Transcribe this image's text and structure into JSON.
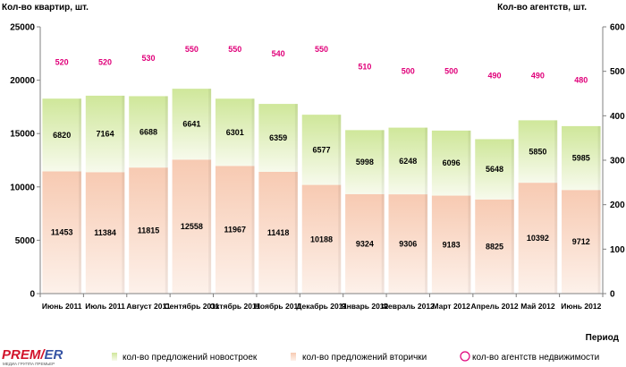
{
  "colors": {
    "new_top": "#cfe79a",
    "new_bottom": "#f7faec",
    "sec_top": "#f7cab2",
    "sec_bottom": "#fdf1ea",
    "agency_text": "#e0007a",
    "axis": "#808080",
    "logo_red": "#d2142b",
    "logo_blue": "#3553a4"
  },
  "logo": {
    "part1": "PREM",
    "part2": "ER",
    "subtitle": "МЕДИА ГРУППА ПРЕМЬЕР"
  },
  "chart_data": {
    "type": "bar",
    "stacked": true,
    "title": "",
    "ylabel_left": "Кол-во квартир, шт.",
    "ylabel_right": "Кол-во агентств, шт.",
    "xlabel": "Период",
    "ylim_left": [
      0,
      25000
    ],
    "yticks_left": [
      0,
      5000,
      10000,
      15000,
      20000,
      25000
    ],
    "ylim_right": [
      0,
      600
    ],
    "yticks_right": [
      0,
      100,
      200,
      300,
      400,
      500,
      600
    ],
    "categories": [
      "Июнь 2011",
      "Июль 2011",
      "Август 2011",
      "Сентябрь 2011",
      "Октябрь 2011",
      "Ноябрь 2011",
      "Декабрь 2011",
      "Январь 2012",
      "Февраль 2012",
      "Март 2012",
      "Апрель 2012",
      "Май 2012",
      "Июнь 2012"
    ],
    "series": [
      {
        "name": "кол-во предложений вторички",
        "values": [
          11453,
          11384,
          11815,
          12558,
          11967,
          11418,
          10188,
          9324,
          9306,
          9183,
          8825,
          10392,
          9712
        ]
      },
      {
        "name": "кол-во предложений новостроек",
        "values": [
          6820,
          7164,
          6688,
          6641,
          6301,
          6359,
          6577,
          5998,
          6248,
          6096,
          5648,
          5850,
          5985
        ]
      },
      {
        "name": "кол-во агентств недвижимости",
        "axis": "right",
        "values": [
          520,
          520,
          530,
          550,
          550,
          540,
          550,
          510,
          500,
          500,
          490,
          490,
          480
        ]
      }
    ],
    "legend": [
      "кол-во предложений новостроек",
      "кол-во предложений вторички",
      "кол-во агентств недвижимости"
    ],
    "legend_position": "bottom"
  }
}
